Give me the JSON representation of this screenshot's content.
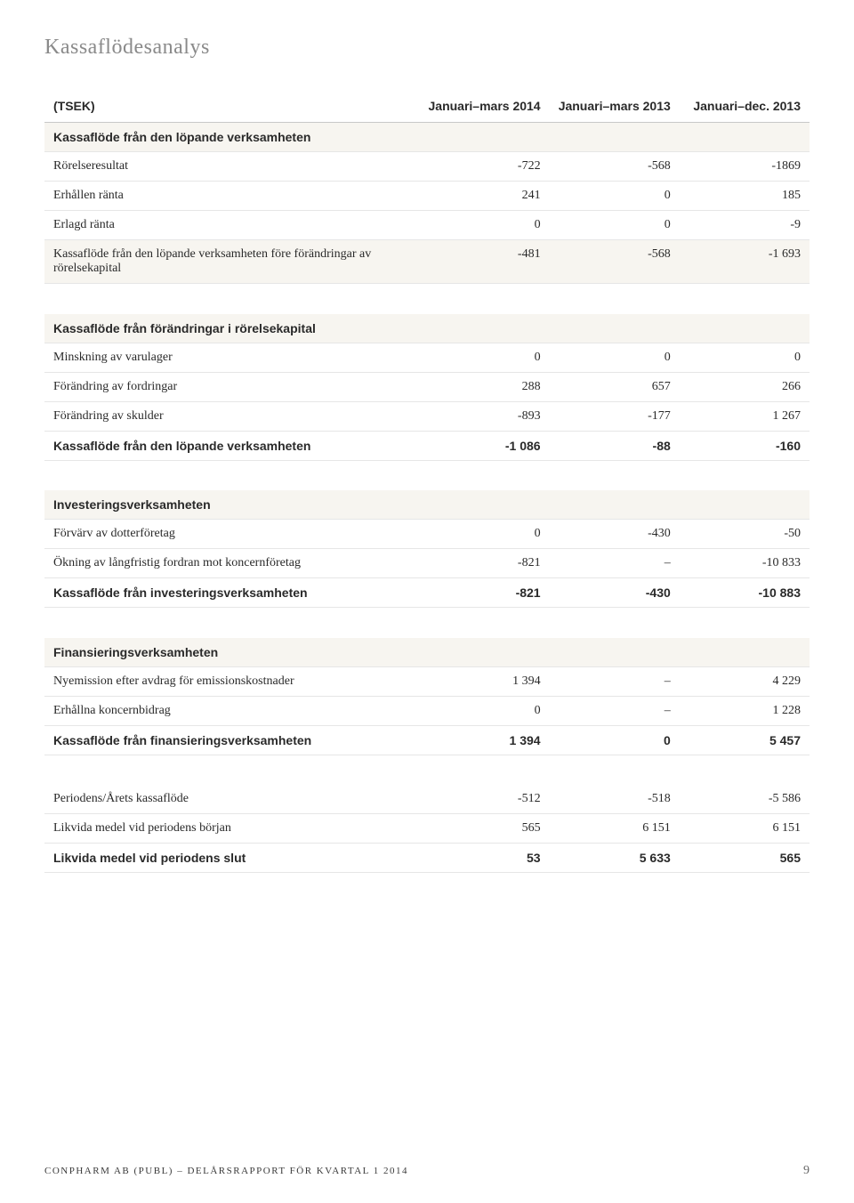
{
  "title": "Kassaflödesanalys",
  "columns": {
    "label": "(TSEK)",
    "c1": "Januari–mars 2014",
    "c2": "Januari–mars 2013",
    "c3": "Januari–dec. 2013"
  },
  "sections": [
    {
      "header": "Kassaflöde från den löpande verksamheten",
      "rows": [
        {
          "label": "Rörelseresultat",
          "c1": "-722",
          "c2": "-568",
          "c3": "-1869"
        },
        {
          "label": "Erhållen ränta",
          "c1": "241",
          "c2": "0",
          "c3": "185"
        },
        {
          "label": "Erlagd ränta",
          "c1": "0",
          "c2": "0",
          "c3": "-9"
        }
      ],
      "subheader": {
        "label": "Kassaflöde från den löpande verksamheten före förändringar av rörelsekapital",
        "c1": "-481",
        "c2": "-568",
        "c3": "-1 693"
      }
    },
    {
      "header": "Kassaflöde från förändringar i rörelsekapital",
      "rows": [
        {
          "label": "Minskning av varulager",
          "c1": "0",
          "c2": "0",
          "c3": "0"
        },
        {
          "label": "Förändring av fordringar",
          "c1": "288",
          "c2": "657",
          "c3": "266"
        },
        {
          "label": "Förändring av skulder",
          "c1": "-893",
          "c2": "-177",
          "c3": "1 267"
        }
      ],
      "total": {
        "label": "Kassaflöde från den löpande verksamheten",
        "c1": "-1 086",
        "c2": "-88",
        "c3": "-160"
      }
    },
    {
      "header": "Investeringsverksamheten",
      "rows": [
        {
          "label": "Förvärv av dotterföretag",
          "c1": "0",
          "c2": "-430",
          "c3": "-50"
        },
        {
          "label": "Ökning av långfristig fordran mot koncernföretag",
          "c1": "-821",
          "c2": "–",
          "c3": "-10 833"
        }
      ],
      "total": {
        "label": "Kassaflöde från investeringsverksamheten",
        "c1": "-821",
        "c2": "-430",
        "c3": "-10 883"
      }
    },
    {
      "header": "Finansieringsverksamheten",
      "rows": [
        {
          "label": "Nyemission efter avdrag för emissionskostnader",
          "c1": "1 394",
          "c2": "–",
          "c3": "4 229"
        },
        {
          "label": "Erhållna koncernbidrag",
          "c1": "0",
          "c2": "–",
          "c3": "1 228"
        }
      ],
      "total": {
        "label": "Kassaflöde från finansieringsverksamheten",
        "c1": "1 394",
        "c2": "0",
        "c3": "5 457"
      }
    }
  ],
  "summary": {
    "rows": [
      {
        "label": "Periodens/Årets kassaflöde",
        "c1": "-512",
        "c2": "-518",
        "c3": "-5 586"
      },
      {
        "label": "Likvida medel vid periodens början",
        "c1": "565",
        "c2": "6 151",
        "c3": "6 151"
      }
    ],
    "total": {
      "label": "Likvida medel vid periodens slut",
      "c1": "53",
      "c2": "5 633",
      "c3": "565"
    }
  },
  "footer": {
    "left": "CONPHARM AB (PUBL) – DELÅRSRAPPORT FÖR KVARTAL 1 2014",
    "page": "9"
  }
}
